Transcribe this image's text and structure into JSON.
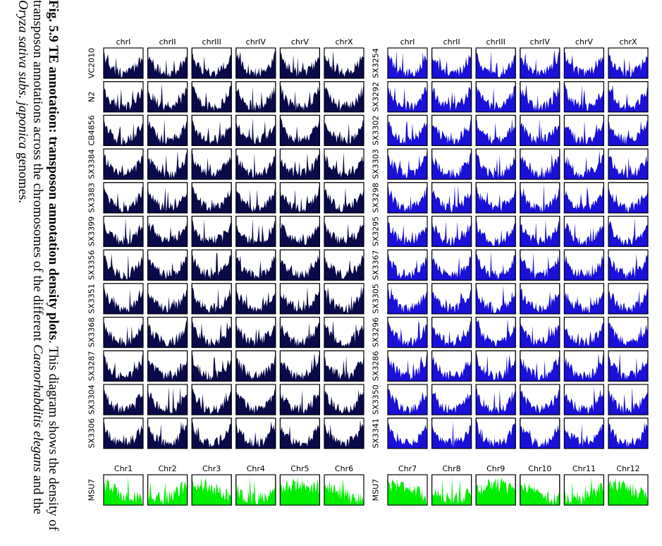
{
  "caption": {
    "fig_label": "Fig. 5.9",
    "bold_title": "TE annotation: transposon annotation density plots",
    "text_1": ". This diagram shows the density of transposon annotations across the chromosomes of the different ",
    "italic_1": "Caenorhabditis elegans",
    "text_2": " and the ",
    "italic_2": "Oryza sativa subs. japonica",
    "text_3": " genomes."
  },
  "chart_data": [
    {
      "type": "area",
      "panel": "elegans-left",
      "columns": [
        "chrI",
        "chrII",
        "chrIII",
        "chrIV",
        "chrV",
        "chrX"
      ],
      "rows": [
        "VC2010",
        "N2",
        "CB4856",
        "SX3384",
        "SX3383",
        "SX3399",
        "SX3356",
        "SX3351",
        "SX3368",
        "SX3287",
        "SX3304",
        "SX3306"
      ],
      "color": "#0a0a4a"
    },
    {
      "type": "area",
      "panel": "elegans-right",
      "columns": [
        "chrI",
        "chrII",
        "chrIII",
        "chrIV",
        "chrV",
        "chrX"
      ],
      "rows": [
        "SX3254",
        "SX3292",
        "SX3302",
        "SX3303",
        "SX3298",
        "SX3295",
        "SX3367",
        "SX3305",
        "SX3296",
        "SX3286",
        "SX3350",
        "SX3341"
      ],
      "color": "#1a10d8"
    },
    {
      "type": "area",
      "panel": "rice-left",
      "columns": [
        "Chr1",
        "Chr2",
        "Chr3",
        "Chr4",
        "Chr5",
        "Chr6"
      ],
      "rows": [
        "MSU7"
      ],
      "color": "#00ee00"
    },
    {
      "type": "area",
      "panel": "rice-right",
      "columns": [
        "Chr7",
        "Chr8",
        "Chr9",
        "Chr10",
        "Chr11",
        "Chr12"
      ],
      "rows": [
        "MSU7"
      ],
      "color": "#00ee00"
    }
  ]
}
